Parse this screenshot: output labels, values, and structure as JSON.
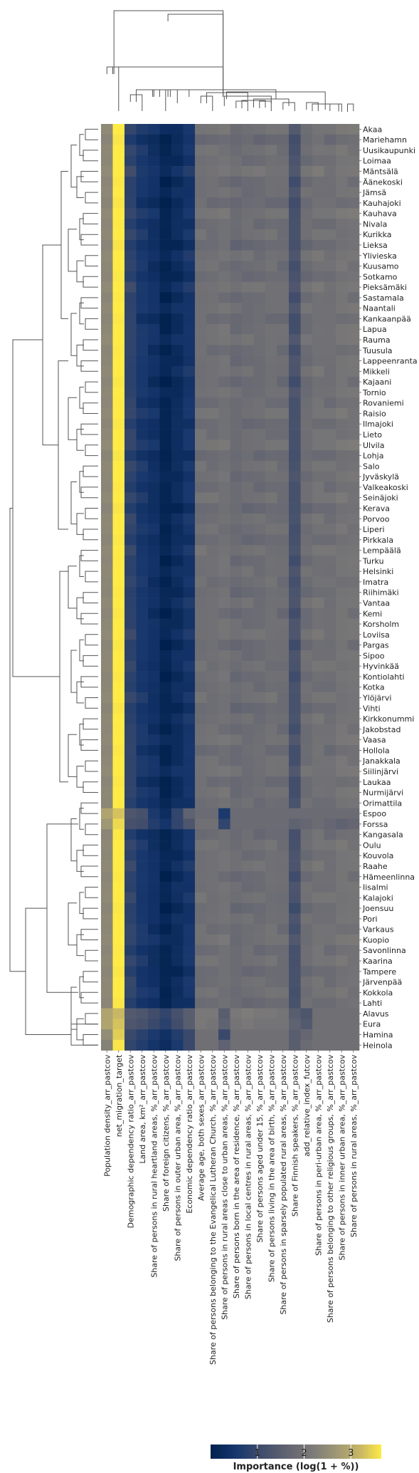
{
  "chart_data": {
    "type": "heatmap",
    "title": "",
    "columns": [
      "Population density_arr_pastcov",
      "net_migration_target",
      "Demographic dependency ratio_arr_pastcov",
      "Land area, km²_arr_pastcov",
      "Share of persons in rural heartland areas, %_arr_pastcov",
      "Share of foreign citizens, %_arr_pastcov",
      "Share of persons in outer urban area, %_arr_pastcov",
      "Economic dependency ratio_arr_pastcov",
      "Average age, both sexes_arr_pastcov",
      "Share of persons belonging to the Evangelical Lutheran Church, %_arr_pastcov",
      "Share of persons in rural areas close to urban areas, %_arr_pastcov",
      "Share of persons born in the area of residence, %_arr_pastcov",
      "Share of persons in local centres in rural areas, %_arr_pastcov",
      "Share of persons aged under 15, %_arr_pastcov",
      "Share of persons living in the area of birth, %_arr_pastcov",
      "Share of persons in sparsely populated rural areas, %_arr_pastcov",
      "Share of Finnish speakers, %_arr_pastcov",
      "add_relative_index_futcov",
      "Share of persons in peri-urban area, %_arr_pastcov",
      "Share of persons belonging to other religious groups, %_arr_pastcov",
      "Share of persons in inner urban area, %_arr_pastcov",
      "Share of persons in rural areas, %_arr_pastcov"
    ],
    "rows": [
      "Akaa",
      "Mariehamn",
      "Uusikaupunki",
      "Loimaa",
      "Mäntsälä",
      "Äänekoski",
      "Jämsä",
      "Kauhajoki",
      "Kauhava",
      "Nivala",
      "Kurikka",
      "Lieksa",
      "Ylivieska",
      "Kuusamo",
      "Sotkamo",
      "Pieksämäki",
      "Sastamala",
      "Naantali",
      "Kankaanpää",
      "Lapua",
      "Rauma",
      "Tuusula",
      "Lappeenranta",
      "Mikkeli",
      "Kajaani",
      "Tornio",
      "Rovaniemi",
      "Raisio",
      "Ilmajoki",
      "Lieto",
      "Ulvila",
      "Lohja",
      "Salo",
      "Jyväskylä",
      "Valkeakoski",
      "Seinäjoki",
      "Kerava",
      "Porvoo",
      "Liperi",
      "Pirkkala",
      "Lempäälä",
      "Turku",
      "Helsinki",
      "Imatra",
      "Riihimäki",
      "Vantaa",
      "Kemi",
      "Korsholm",
      "Loviisa",
      "Pargas",
      "Sipoo",
      "Hyvinkää",
      "Kontiolahti",
      "Kotka",
      "Ylöjärvi",
      "Vihti",
      "Kirkkonummi",
      "Jakobstad",
      "Vaasa",
      "Hollola",
      "Janakkala",
      "Siilinjärvi",
      "Laukaa",
      "Nurmijärvi",
      "Orimattila",
      "Espoo",
      "Forssa",
      "Kangasala",
      "Oulu",
      "Kouvola",
      "Raahe",
      "Hämeenlinna",
      "Iisalmi",
      "Kalajoki",
      "Joensuu",
      "Pori",
      "Varkaus",
      "Kuopio",
      "Savonlinna",
      "Kaarina",
      "Tampere",
      "Järvenpää",
      "Kokkola",
      "Lahti",
      "Alavus",
      "Eura",
      "Hamina",
      "Heinola"
    ],
    "base_profile": [
      2.4,
      3.65,
      0.85,
      0.55,
      0.4,
      0.12,
      0.3,
      0.5,
      1.9,
      1.9,
      1.95,
      1.8,
      1.85,
      1.85,
      1.9,
      1.85,
      1.2,
      1.85,
      1.95,
      1.9,
      2.0,
      2.0
    ],
    "row_offsets": [
      0.1,
      -0.1,
      0.05,
      0.0,
      0.15,
      -0.05,
      0.02,
      -0.08,
      0.1,
      -0.02,
      0.05,
      -0.1,
      0.08,
      0.0,
      -0.05,
      0.12,
      -0.03,
      0.07,
      -0.06,
      0.03,
      0.1,
      -0.04,
      0.0,
      0.06,
      -0.07,
      0.04,
      -0.02,
      0.08,
      -0.05,
      0.02,
      0.1,
      -0.08,
      0.05,
      0.0,
      -0.03,
      0.06,
      -0.1,
      0.04,
      0.02,
      -0.06,
      0.08,
      -0.02,
      0.05,
      0.0,
      -0.04,
      0.07,
      -0.05,
      0.03,
      0.1,
      -0.07,
      0.02,
      0.05,
      -0.03,
      0.0,
      0.06,
      -0.08,
      0.04,
      -0.02,
      0.08,
      -0.05,
      0.02,
      0.1,
      -0.06,
      0.03,
      0.0,
      0.3,
      0.2,
      -0.05,
      0.05,
      0.0,
      0.08,
      -0.04,
      0.02,
      0.06,
      -0.06,
      0.04,
      0.0,
      0.07,
      -0.03,
      0.05,
      -0.07,
      0.02,
      0.04,
      -0.05,
      0.35,
      0.25,
      0.1,
      0.05
    ],
    "overrides": [
      {
        "row": "Espoo",
        "values": [
          2.9,
          3.3,
          1.3,
          1.2,
          0.6,
          0.3,
          0.9,
          1.6,
          1.8,
          1.8,
          0.6,
          1.8,
          1.8,
          1.8,
          1.8,
          1.8,
          1.8,
          1.8,
          1.8,
          1.8,
          1.8,
          1.8
        ]
      },
      {
        "row": "Forssa",
        "values": [
          2.7,
          3.5,
          1.2,
          1.1,
          0.7,
          0.5,
          0.9,
          1.3,
          1.9,
          1.9,
          0.9,
          1.8,
          1.8,
          1.8,
          1.8,
          1.8,
          1.6,
          1.7,
          1.8,
          1.7,
          1.6,
          1.7
        ]
      },
      {
        "row": "Alavus",
        "values": [
          2.9,
          3.2,
          1.4,
          1.3,
          1.1,
          0.9,
          1.2,
          1.5,
          2.1,
          2.1,
          1.5,
          2.1,
          2.2,
          2.1,
          2.1,
          2.0,
          1.5,
          1.3,
          1.9,
          1.9,
          1.9,
          1.9
        ]
      },
      {
        "row": "Eura",
        "values": [
          2.9,
          3.3,
          1.3,
          1.2,
          1.0,
          0.8,
          1.1,
          1.5,
          2.1,
          2.0,
          1.6,
          2.0,
          2.1,
          2.0,
          2.0,
          2.0,
          1.6,
          1.4,
          1.9,
          1.9,
          1.9,
          1.9
        ]
      },
      {
        "row": "Hamina",
        "values": [
          2.5,
          3.4,
          1.0,
          0.8,
          0.6,
          0.4,
          0.7,
          1.0,
          1.9,
          1.9,
          1.0,
          1.9,
          1.9,
          1.9,
          1.9,
          1.9,
          1.5,
          1.7,
          1.9,
          1.9,
          1.9,
          1.9
        ]
      },
      {
        "row": "Heinola",
        "values": [
          2.3,
          3.6,
          0.9,
          0.7,
          0.5,
          0.3,
          0.6,
          1.0,
          1.9,
          1.9,
          1.6,
          1.9,
          1.9,
          1.9,
          1.9,
          1.9,
          1.5,
          1.8,
          1.9,
          1.9,
          1.9,
          1.9
        ]
      }
    ],
    "colorbar": {
      "label": "Importance (log(1 + %))",
      "colormap": "cividis",
      "vmin": 0.0,
      "vmax": 3.65,
      "ticks": [
        1,
        2,
        3
      ]
    },
    "row_dendrogram": true,
    "col_dendrogram": true
  }
}
